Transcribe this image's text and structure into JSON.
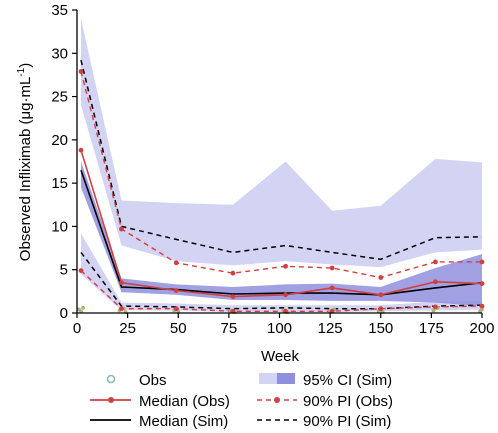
{
  "chart_data": {
    "type": "line",
    "xlabel": "Week",
    "ylabel": "Observed Infliximab  (μg·mL⁻¹)",
    "ylabel_main": "Observed Infliximab  (μg·mL",
    "ylabel_sup": "-1",
    "ylabel_tail": ")",
    "xlim": [
      0,
      200
    ],
    "ylim": [
      0,
      35
    ],
    "x_ticks": [
      0,
      25,
      50,
      75,
      100,
      125,
      150,
      175,
      200
    ],
    "y_ticks": [
      0,
      5,
      10,
      15,
      20,
      25,
      30,
      35
    ],
    "x": [
      2,
      22,
      49,
      77,
      103,
      126,
      150,
      177,
      200
    ],
    "median_obs": [
      18.8,
      3.5,
      2.6,
      1.9,
      2.1,
      2.9,
      2.1,
      3.6,
      3.4
    ],
    "median_sim": [
      16.5,
      3.0,
      2.7,
      2.2,
      2.3,
      2.3,
      2.1,
      2.9,
      3.5
    ],
    "pi90_obs_upper": [
      27.9,
      9.7,
      5.8,
      4.6,
      5.4,
      5.2,
      4.1,
      5.9,
      5.9
    ],
    "pi90_obs_lower": [
      4.9,
      0.5,
      0.5,
      0.2,
      0.2,
      0.2,
      0.5,
      0.7,
      0.8
    ],
    "pi90_sim_upper": [
      29.2,
      10.0,
      8.5,
      7.0,
      7.8,
      7.0,
      6.2,
      8.7,
      8.8
    ],
    "pi90_sim_lower": [
      7.0,
      0.8,
      0.7,
      0.5,
      0.6,
      0.5,
      0.5,
      0.8,
      0.9
    ],
    "ci_upper_band": {
      "upper": [
        34.0,
        13.0,
        12.7,
        12.5,
        17.5,
        11.8,
        12.4,
        17.8,
        17.4
      ],
      "lower": [
        24.0,
        7.8,
        6.0,
        5.5,
        6.0,
        5.6,
        5.3,
        7.0,
        7.3
      ]
    },
    "ci_median_band": {
      "upper": [
        17.5,
        4.0,
        3.3,
        3.0,
        3.3,
        3.4,
        3.0,
        5.2,
        6.8
      ],
      "lower": [
        14.5,
        2.4,
        2.1,
        1.5,
        1.5,
        1.4,
        1.4,
        1.2,
        0.8
      ]
    },
    "ci_lower_band": {
      "upper": [
        9.2,
        1.2,
        1.1,
        0.9,
        0.9,
        0.9,
        0.9,
        1.3,
        1.4
      ],
      "lower": [
        4.5,
        0.3,
        0.3,
        0.1,
        0.1,
        0.1,
        0.2,
        0.3,
        0.4
      ]
    },
    "obs_points": [
      [
        1,
        0.4
      ],
      [
        2,
        0.2
      ],
      [
        3,
        0.6
      ],
      [
        21,
        0.3
      ],
      [
        23,
        0.5
      ],
      [
        24,
        0.1
      ],
      [
        48,
        0.3
      ],
      [
        50,
        0.2
      ],
      [
        76,
        0.2
      ],
      [
        78,
        0.1
      ],
      [
        102,
        0.3
      ],
      [
        104,
        0.1
      ],
      [
        125,
        0.2
      ],
      [
        127,
        0.4
      ],
      [
        149,
        0.2
      ],
      [
        151,
        0.1
      ],
      [
        176,
        0.3
      ],
      [
        178,
        0.6
      ],
      [
        199,
        0.2
      ],
      [
        200,
        0.4
      ]
    ],
    "legend": {
      "obs": "Obs",
      "median_obs": "Median (Obs)",
      "median_sim": "Median (Sim)",
      "ci95_sim": "95% CI (Sim)",
      "pi90_obs": "90% PI (Obs)",
      "pi90_sim": "90% PI (Sim)"
    },
    "legend_position": "bottom",
    "grid": false,
    "colors": {
      "obs": "#d04040",
      "obs_point_fill": "#8fb8b8",
      "sim": "#000000",
      "ci_light": "#d3d3f3",
      "ci_dark": "#8f8fde"
    }
  }
}
